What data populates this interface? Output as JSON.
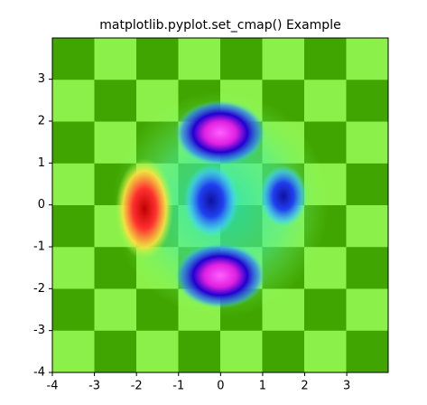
{
  "chart_data": {
    "type": "image",
    "title": "matplotlib.pyplot.set_cmap() Example",
    "xlim": [
      -4,
      3.985
    ],
    "ylim": [
      -4,
      3.985
    ],
    "xticks": [
      -4,
      -3,
      -2,
      -1,
      0,
      1,
      2,
      3
    ],
    "yticks": [
      -4,
      -3,
      -2,
      -1,
      0,
      1,
      2,
      3
    ],
    "colors": [
      "#40a500",
      "#8cf04a"
    ],
    "checkerboard": [
      [
        0,
        1,
        0,
        1,
        0,
        1,
        0,
        1
      ],
      [
        1,
        0,
        1,
        0,
        1,
        0,
        1,
        0
      ],
      [
        0,
        1,
        0,
        1,
        0,
        1,
        0,
        1
      ],
      [
        1,
        0,
        1,
        0,
        1,
        0,
        1,
        0
      ],
      [
        0,
        1,
        0,
        1,
        0,
        1,
        0,
        1
      ],
      [
        1,
        0,
        1,
        0,
        1,
        0,
        1,
        0
      ],
      [
        0,
        1,
        0,
        1,
        0,
        1,
        0,
        1
      ],
      [
        1,
        0,
        1,
        0,
        1,
        0,
        1,
        0
      ]
    ]
  }
}
